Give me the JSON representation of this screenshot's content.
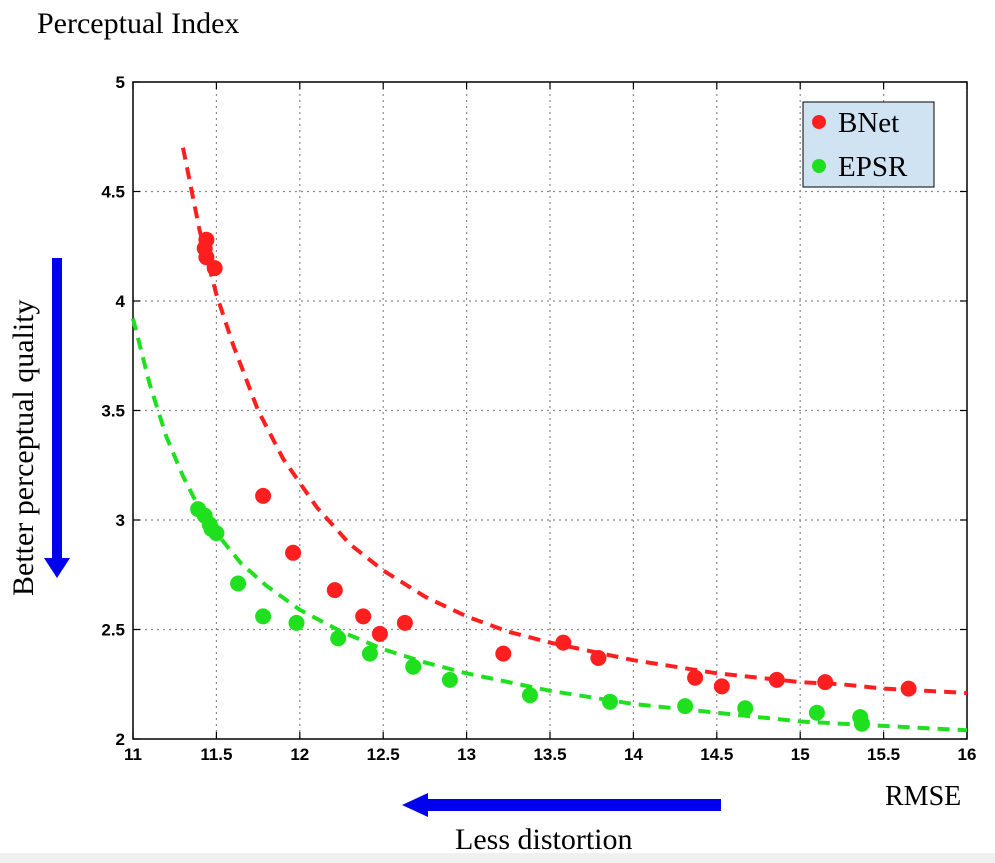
{
  "chart_data": {
    "type": "scatter",
    "title": "Perceptual Index",
    "xlabel": "RMSE",
    "ylabel": "Perceptual Index",
    "xlim": [
      11,
      16
    ],
    "ylim": [
      2,
      5
    ],
    "xticks": [
      "11",
      "11.5",
      "12",
      "12.5",
      "13",
      "13.5",
      "14",
      "14.5",
      "15",
      "15.5",
      "16"
    ],
    "yticks": [
      "2",
      "2.5",
      "3",
      "3.5",
      "4",
      "4.5",
      "5"
    ],
    "grid": true,
    "legend_position": "top-right",
    "series": [
      {
        "name": "BNet",
        "color": "#ff1f1f",
        "points": [
          [
            11.44,
            4.28
          ],
          [
            11.43,
            4.24
          ],
          [
            11.44,
            4.2
          ],
          [
            11.49,
            4.15
          ],
          [
            11.78,
            3.11
          ],
          [
            11.96,
            2.85
          ],
          [
            12.21,
            2.68
          ],
          [
            12.38,
            2.56
          ],
          [
            12.48,
            2.48
          ],
          [
            12.63,
            2.53
          ],
          [
            13.22,
            2.39
          ],
          [
            13.58,
            2.44
          ],
          [
            13.79,
            2.37
          ],
          [
            14.37,
            2.28
          ],
          [
            14.53,
            2.24
          ],
          [
            14.86,
            2.27
          ],
          [
            15.15,
            2.26
          ],
          [
            15.65,
            2.23
          ]
        ],
        "fit_curve": [
          [
            11.3,
            4.7
          ],
          [
            11.4,
            4.32
          ],
          [
            11.5,
            4.03
          ],
          [
            11.6,
            3.8
          ],
          [
            11.75,
            3.5
          ],
          [
            11.9,
            3.28
          ],
          [
            12.1,
            3.06
          ],
          [
            12.3,
            2.89
          ],
          [
            12.5,
            2.77
          ],
          [
            12.75,
            2.65
          ],
          [
            13.0,
            2.56
          ],
          [
            13.25,
            2.49
          ],
          [
            13.5,
            2.44
          ],
          [
            13.75,
            2.4
          ],
          [
            14.0,
            2.36
          ],
          [
            14.25,
            2.33
          ],
          [
            14.5,
            2.3
          ],
          [
            14.75,
            2.28
          ],
          [
            15.0,
            2.26
          ],
          [
            15.25,
            2.25
          ],
          [
            15.5,
            2.23
          ],
          [
            15.75,
            2.22
          ],
          [
            16.0,
            2.21
          ]
        ]
      },
      {
        "name": "EPSR",
        "color": "#1fe01f",
        "points": [
          [
            11.39,
            3.05
          ],
          [
            11.43,
            3.02
          ],
          [
            11.46,
            2.98
          ],
          [
            11.47,
            2.96
          ],
          [
            11.5,
            2.94
          ],
          [
            11.63,
            2.71
          ],
          [
            11.78,
            2.56
          ],
          [
            11.98,
            2.53
          ],
          [
            12.23,
            2.46
          ],
          [
            12.42,
            2.39
          ],
          [
            12.68,
            2.33
          ],
          [
            12.9,
            2.27
          ],
          [
            13.38,
            2.2
          ],
          [
            13.86,
            2.17
          ],
          [
            14.31,
            2.15
          ],
          [
            14.67,
            2.14
          ],
          [
            15.1,
            2.12
          ],
          [
            15.36,
            2.1
          ],
          [
            15.37,
            2.07
          ]
        ],
        "fit_curve": [
          [
            11.0,
            3.92
          ],
          [
            11.1,
            3.62
          ],
          [
            11.2,
            3.38
          ],
          [
            11.3,
            3.2
          ],
          [
            11.4,
            3.05
          ],
          [
            11.5,
            2.94
          ],
          [
            11.65,
            2.8
          ],
          [
            11.8,
            2.7
          ],
          [
            12.0,
            2.59
          ],
          [
            12.25,
            2.49
          ],
          [
            12.5,
            2.41
          ],
          [
            12.75,
            2.35
          ],
          [
            13.0,
            2.3
          ],
          [
            13.25,
            2.26
          ],
          [
            13.5,
            2.22
          ],
          [
            13.75,
            2.19
          ],
          [
            14.0,
            2.16
          ],
          [
            14.25,
            2.14
          ],
          [
            14.5,
            2.12
          ],
          [
            14.75,
            2.1
          ],
          [
            15.0,
            2.08
          ],
          [
            15.25,
            2.07
          ],
          [
            15.5,
            2.06
          ],
          [
            15.75,
            2.05
          ],
          [
            16.0,
            2.04
          ]
        ]
      }
    ],
    "annotations": {
      "vertical_arrow_label": "Better perceptual quality",
      "horizontal_arrow_label": "Less distortion",
      "arrow_color": "#0000ee"
    }
  }
}
